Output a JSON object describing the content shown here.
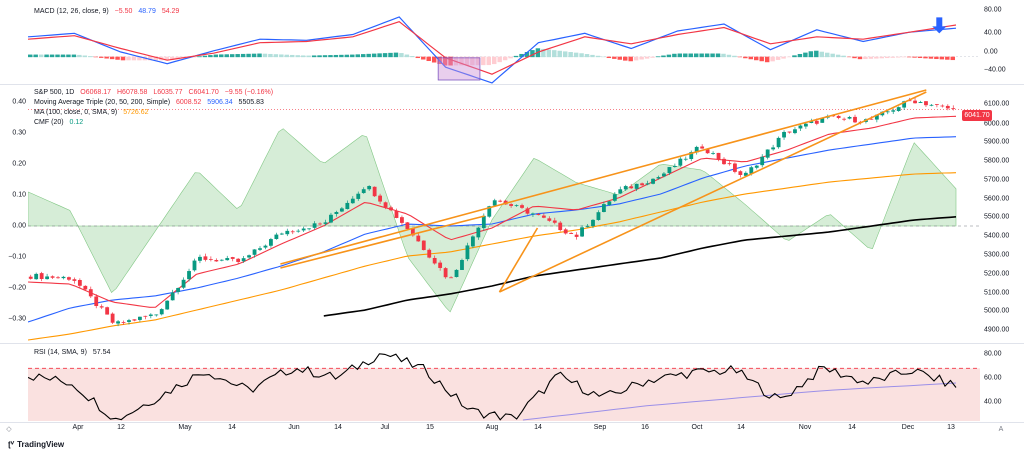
{
  "macd": {
    "legend": {
      "label": "MACD (12, 26, close, 9)",
      "v1": "−5.50",
      "v2": "48.79",
      "v3": "54.29"
    },
    "axis": [
      "80.00",
      "40.00",
      "0.00",
      "−40.00"
    ],
    "colors": {
      "macd": "#2962ff",
      "signal": "#f23645",
      "hist_up": "#26a69a",
      "hist_up_light": "#b2dfdb",
      "hist_dn": "#ff5252",
      "hist_dn_light": "#ffcdd2"
    }
  },
  "price": {
    "legend": {
      "symbol": "S&P 500, 1D",
      "o": "O6068.17",
      "h": "H6078.58",
      "l": "L6035.77",
      "c": "C6041.70",
      "chg": "−9.55 (−0.16%)",
      "ma_label": "Moving Average Triple (20, 50, 200, Simple)",
      "ma1": "6008.52",
      "ma2": "5906.34",
      "ma3": "5505.83",
      "ma100_label": "MA (100, close, 0, SMA, 9)",
      "ma100": "5726.62",
      "cmf_label": "CMF (20)",
      "cmf": "0.12"
    },
    "right_axis": [
      "6100.00",
      "6000.00",
      "5900.00",
      "5800.00",
      "5700.00",
      "5600.00",
      "5500.00",
      "5400.00",
      "5300.00",
      "5200.00",
      "5100.00",
      "5000.00",
      "4900.00"
    ],
    "left_axis": [
      "0.40",
      "0.30",
      "0.20",
      "0.10",
      "0.00",
      "−0.10",
      "−0.20",
      "−0.30"
    ],
    "last_price": "6041.70",
    "colors": {
      "up": "#089981",
      "down": "#f23645",
      "ma20": "#f23645",
      "ma50": "#2962ff",
      "ma100": "#ff9800",
      "ma200": "#000000",
      "trend": "#f7931a",
      "cmf": "#a5d6a7"
    }
  },
  "rsi": {
    "legend": {
      "label": "RSI (14, SMA, 9)",
      "value": "57.54"
    },
    "axis": [
      "80.00",
      "60.00",
      "40.00"
    ],
    "colors": {
      "rsi": "#000000",
      "sma": "#9b8fe8",
      "band": "#f8d7d5"
    }
  },
  "xaxis": [
    "Apr",
    "12",
    "May",
    "14",
    "Jun",
    "14",
    "Jul",
    "15",
    "Aug",
    "14",
    "Sep",
    "16",
    "Oct",
    "14",
    "Nov",
    "14",
    "Dec",
    "13"
  ],
  "footer": {
    "brand": "TradingView",
    "tz": "A"
  },
  "chart_data": [
    {
      "type": "line",
      "title": "MACD (12, 26, close, 9)",
      "x": [
        "Mar 25",
        "Apr 8",
        "Apr 19",
        "May 1",
        "May 15",
        "Jun 1",
        "Jun 14",
        "Jul 1",
        "Jul 16",
        "Aug 1",
        "Aug 7",
        "Aug 20",
        "Sep 3",
        "Sep 16",
        "Oct 1",
        "Oct 15",
        "Oct 31",
        "Nov 12",
        "Nov 25",
        "Dec 6",
        "Dec 13"
      ],
      "series": [
        {
          "name": "MACD",
          "values": [
            34,
            40,
            8,
            -12,
            10,
            30,
            28,
            38,
            68,
            -18,
            -45,
            24,
            40,
            14,
            44,
            56,
            12,
            46,
            26,
            42,
            48.79
          ]
        },
        {
          "name": "Signal",
          "values": [
            30,
            36,
            14,
            -6,
            6,
            24,
            26,
            34,
            60,
            -2,
            -30,
            8,
            34,
            22,
            38,
            50,
            22,
            34,
            30,
            42,
            54.29
          ]
        }
      ],
      "ylim": [
        -40,
        80
      ]
    },
    {
      "type": "candlestick",
      "title": "S&P 500, 1D",
      "x": [
        "Mar 25",
        "Apr 8",
        "Apr 19",
        "May 1",
        "May 15",
        "Jun 1",
        "Jun 14",
        "Jul 1",
        "Jul 16",
        "Aug 1",
        "Aug 5",
        "Aug 20",
        "Sep 3",
        "Sep 6",
        "Sep 16",
        "Oct 1",
        "Oct 15",
        "Oct 31",
        "Nov 6",
        "Nov 12",
        "Nov 25",
        "Dec 6",
        "Dec 13"
      ],
      "close": [
        5210,
        5200,
        4967,
        5020,
        5300,
        5280,
        5430,
        5475,
        5667,
        5446,
        5186,
        5597,
        5520,
        5408,
        5633,
        5708,
        5860,
        5705,
        5929,
        6001,
        5987,
        6090,
        6041.7
      ],
      "ma20": [
        5180,
        5170,
        5080,
        5050,
        5220,
        5270,
        5370,
        5460,
        5580,
        5520,
        5390,
        5450,
        5560,
        5540,
        5600,
        5700,
        5800,
        5780,
        5840,
        5920,
        5950,
        6000,
        6008.52
      ],
      "ma50": [
        4980,
        5050,
        5090,
        5110,
        5150,
        5200,
        5260,
        5330,
        5420,
        5470,
        5460,
        5470,
        5520,
        5540,
        5570,
        5620,
        5700,
        5760,
        5800,
        5840,
        5870,
        5900,
        5906.34
      ],
      "ma100": [
        4890,
        4920,
        4960,
        4990,
        5040,
        5090,
        5140,
        5200,
        5260,
        5310,
        5330,
        5370,
        5410,
        5440,
        5480,
        5530,
        5580,
        5620,
        5650,
        5680,
        5700,
        5720,
        5726.62
      ],
      "ma200": [
        null,
        null,
        null,
        null,
        null,
        null,
        null,
        5010,
        5040,
        5090,
        5120,
        5160,
        5210,
        5240,
        5270,
        5300,
        5350,
        5390,
        5410,
        5430,
        5460,
        5490,
        5505.83
      ],
      "cmf": [
        0.11,
        0.05,
        -0.22,
        -0.02,
        0.18,
        0.05,
        0.32,
        0.2,
        0.3,
        -0.1,
        -0.28,
        0.02,
        0.22,
        0.14,
        0.1,
        0.2,
        0.18,
        0.07,
        -0.05,
        0.04,
        -0.08,
        0.27,
        0.12
      ],
      "ylim": [
        4880,
        6160
      ]
    },
    {
      "type": "line",
      "title": "RSI (14, SMA, 9)",
      "x": [
        "Mar 25",
        "Apr 8",
        "Apr 19",
        "May 1",
        "May 15",
        "Jun 1",
        "Jun 14",
        "Jul 1",
        "Jul 10",
        "Jul 16",
        "Aug 1",
        "Aug 7",
        "Aug 20",
        "Sep 3",
        "Sep 16",
        "Oct 1",
        "Oct 15",
        "Nov 1",
        "Nov 12",
        "Nov 25",
        "Dec 6",
        "Dec 13"
      ],
      "series": [
        {
          "name": "RSI",
          "values": [
            66,
            60,
            31,
            50,
            70,
            54,
            72,
            64,
            84,
            70,
            38,
            32,
            66,
            48,
            62,
            68,
            70,
            46,
            72,
            60,
            70,
            57.54
          ]
        },
        {
          "name": "RSI SMA trend",
          "values": [
            null,
            null,
            null,
            null,
            null,
            null,
            null,
            null,
            null,
            null,
            null,
            30,
            34,
            38,
            42,
            45,
            48,
            51,
            54,
            56,
            58,
            60
          ]
        }
      ],
      "ylim": [
        30,
        90
      ],
      "bands": [
        70,
        30
      ]
    }
  ]
}
